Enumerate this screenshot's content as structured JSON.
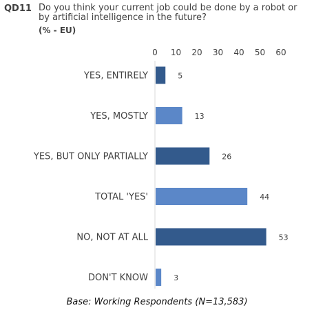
{
  "question": {
    "code": "QD11",
    "text": "Do you think your current job could be done by a robot or by artificial intelligence in the future?",
    "unit": "(% - EU)"
  },
  "chart_data": {
    "type": "bar",
    "orientation": "horizontal",
    "categories": [
      "YES, ENTIRELY",
      "YES, MOSTLY",
      "YES, BUT ONLY PARTIALLY",
      "TOTAL 'YES'",
      "NO, NOT AT ALL",
      "DON'T KNOW"
    ],
    "values": [
      5,
      13,
      26,
      44,
      53,
      3
    ],
    "bar_colors": [
      "#335a8c",
      "#5b87c8",
      "#335a8c",
      "#5b87c8",
      "#335a8c",
      "#5b87c8"
    ],
    "xticks": [
      0,
      10,
      20,
      30,
      40,
      50,
      60
    ],
    "xlim": [
      0,
      60
    ],
    "grid": false,
    "legend": "none"
  },
  "footnote": "Base: Working Respondents (N=13,583)"
}
